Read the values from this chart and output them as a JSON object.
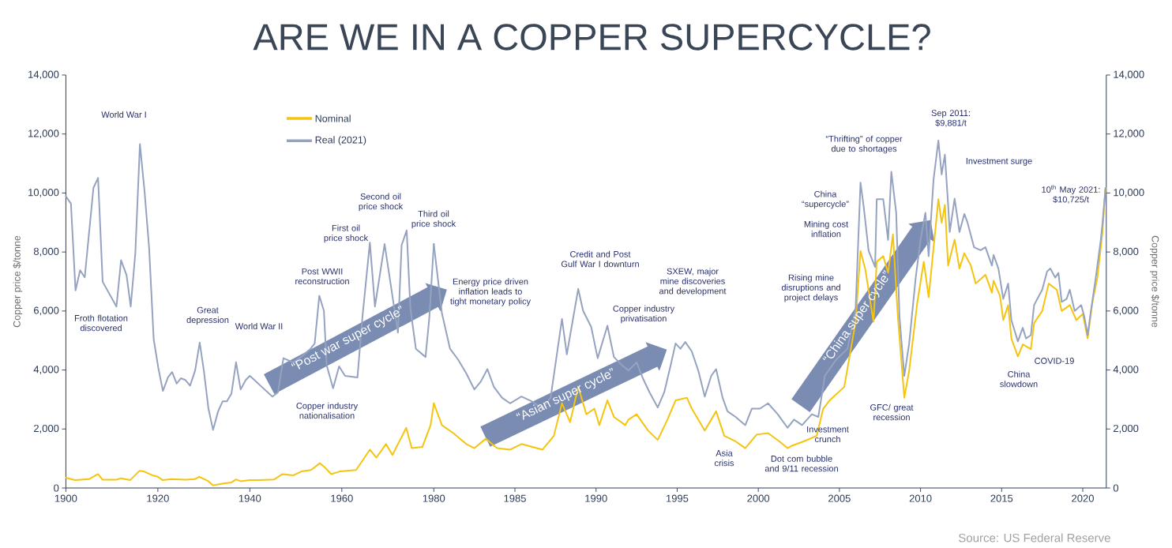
{
  "chart_data": [
    {
      "type": "line",
      "title": "ARE WE IN A COPPER SUPERCYCLE?",
      "ylabel": "Copper price $/tonne",
      "legend": "top",
      "xlim": [
        1900,
        1980
      ],
      "xticks": [
        1900,
        1920,
        1940,
        1960,
        1980
      ],
      "ylim": [
        0,
        14000
      ],
      "yticks": [
        0,
        {
          "value": 2000,
          "label": "2,000"
        },
        {
          "value": 4000,
          "label": "4,000"
        },
        {
          "value": 6000,
          "label": "6,000"
        },
        {
          "value": 8000,
          "label": "8,000"
        },
        {
          "value": 10000,
          "label": "10,000"
        },
        {
          "value": 12000,
          "label": "12,000"
        },
        {
          "value": 14000,
          "label": "14,000"
        }
      ],
      "series": [
        {
          "name": "Nominal",
          "color": "#f5c40f",
          "x": [
            1900,
            1902,
            1905,
            1907,
            1908,
            1911,
            1912,
            1914,
            1916,
            1917,
            1919,
            1920,
            1921,
            1923,
            1926,
            1928,
            1929,
            1931,
            1932,
            1934,
            1936,
            1937,
            1938,
            1940,
            1942,
            1945.3,
            1947.1,
            1949.5,
            1951.2,
            1953.3,
            1955.2,
            1956.3,
            1957.7,
            1959.5,
            1963.1,
            1966.1,
            1967.5,
            1969.6,
            1971,
            1974,
            1975.2,
            1977.5,
            1979.3,
            1980
          ],
          "values": [
            350,
            270,
            300,
            470,
            280,
            280,
            330,
            270,
            580,
            560,
            420,
            380,
            270,
            300,
            280,
            300,
            380,
            230,
            90,
            150,
            190,
            290,
            230,
            270,
            270,
            290,
            470,
            430,
            560,
            610,
            840,
            700,
            470,
            560,
            610,
            1300,
            1030,
            1490,
            1120,
            2040,
            1350,
            1390,
            2130,
            2870
          ]
        },
        {
          "name": "Real (2021)",
          "color": "#95a3c0",
          "x": [
            1900,
            1901.1,
            1902.1,
            1903.1,
            1904.1,
            1906,
            1907,
            1908,
            1911,
            1912,
            1913.2,
            1914.1,
            1915.1,
            1916.1,
            1917.1,
            1918.1,
            1919.1,
            1920.1,
            1921.1,
            1922.2,
            1923.1,
            1924.1,
            1925,
            1926,
            1927,
            1928.1,
            1929.1,
            1930,
            1931,
            1932,
            1933.1,
            1934.1,
            1935,
            1936,
            1937,
            1938,
            1939.1,
            1940,
            1941,
            1942.3,
            1944.9,
            1946.1,
            1947.3,
            1949.4,
            1951.1,
            1953.2,
            1954.1,
            1955.1,
            1956.1,
            1956.7,
            1958.1,
            1959.4,
            1960.7,
            1963.4,
            1964.5,
            1966.1,
            1967.2,
            1969.3,
            1972.2,
            1973,
            1974.1,
            1974.9,
            1976.1,
            1978.2,
            1979,
            1980
          ],
          "values": [
            9890,
            9640,
            6700,
            7380,
            7140,
            10180,
            10510,
            6990,
            6150,
            7720,
            7210,
            6150,
            7950,
            11660,
            10070,
            8140,
            5040,
            4070,
            3290,
            3750,
            3930,
            3540,
            3720,
            3660,
            3470,
            3980,
            4930,
            3980,
            2690,
            1970,
            2600,
            2940,
            2940,
            3200,
            4260,
            3340,
            3660,
            3800,
            3660,
            3470,
            3100,
            3240,
            4400,
            4260,
            4440,
            4720,
            4900,
            6520,
            6010,
            4160,
            3380,
            4120,
            3800,
            3750,
            5830,
            8320,
            6150,
            8270,
            5270,
            8230,
            8730,
            6100,
            4720,
            4440,
            5730,
            8270
          ]
        }
      ],
      "annotations": [
        "World War I",
        "Froth flotation discovered",
        "Great depression",
        "World War II",
        "Post WWII reconstruction",
        "Copper industry nationalisation",
        "First  oil price shock",
        "Second oil price shock",
        "Third oil price shock",
        "“Post war super cycle”"
      ]
    },
    {
      "type": "line",
      "y2label": "Copper price $/tonne",
      "xlim": [
        1980,
        2021.45
      ],
      "xticks": [
        1985,
        1990,
        1995,
        2000,
        2005,
        2010,
        2015,
        2020
      ],
      "y2lim": [
        0,
        14000
      ],
      "y2ticks": [
        0,
        {
          "value": 2000,
          "label": "2,000"
        },
        {
          "value": 4000,
          "label": "4,000"
        },
        {
          "value": 6000,
          "label": "6,000"
        },
        {
          "value": 8000,
          "label": "8,000"
        },
        {
          "value": 10000,
          "label": "10,000"
        },
        {
          "value": 12000,
          "label": "12,000"
        },
        {
          "value": 14000,
          "label": "14,000"
        }
      ],
      "series": [
        {
          "color": "#f5c40f",
          "axis": "y2",
          "x": [
            1980,
            1980.5,
            1981.2,
            1982,
            1982.5,
            1983.2,
            1983.9,
            1984.7,
            1985.4,
            1986.7,
            1987.4,
            1987.9,
            1988.4,
            1988.9,
            1989.4,
            1989.9,
            1990.2,
            1990.7,
            1991.1,
            1991.8,
            1992,
            1992.5,
            1993.2,
            1993.8,
            1994.4,
            1994.9,
            1995.6,
            1995.9,
            1996.7,
            1997.4,
            1997.9,
            1998.6,
            1999.2,
            1999.9,
            2000.6,
            2001.3,
            2001.8,
            2002.1,
            2002.8,
            2003.6,
            2004,
            2004.4,
            2005.3,
            2006,
            2006.3,
            2006.6,
            2007.1,
            2007.3,
            2007.7,
            2008,
            2008.3,
            2008.6,
            2009,
            2009.3,
            2009.8,
            2010.2,
            2010.5,
            2011.1,
            2011.3,
            2011.5,
            2011.7,
            2012.1,
            2012.4,
            2012.7,
            2013.1,
            2013.4,
            2014,
            2014.4,
            2014.5,
            2014.9,
            2015.1,
            2015.4,
            2015.6,
            2016,
            2016.3,
            2016.8,
            2017,
            2017.5,
            2017.9,
            2018.4,
            2018.7,
            2019.2,
            2019.6,
            2020,
            2020.3,
            2020.6,
            2020.9,
            2021.2,
            2021.4
          ],
          "values": [
            2870,
            2130,
            1860,
            1490,
            1350,
            1670,
            1350,
            1300,
            1490,
            1300,
            1770,
            2870,
            2230,
            3430,
            2500,
            2690,
            2130,
            2970,
            2410,
            2130,
            2320,
            2500,
            1950,
            1630,
            2320,
            2970,
            3060,
            2690,
            1950,
            2600,
            1770,
            1580,
            1350,
            1810,
            1860,
            1580,
            1350,
            1440,
            1580,
            1770,
            2690,
            2970,
            3430,
            5640,
            8040,
            7400,
            5640,
            7670,
            7860,
            7300,
            8600,
            5830,
            3060,
            3980,
            6290,
            7670,
            6470,
            9790,
            8990,
            9600,
            7540,
            8420,
            7440,
            7960,
            7540,
            6930,
            7230,
            6620,
            7030,
            6510,
            5690,
            6200,
            5070,
            4460,
            4870,
            4710,
            5590,
            6000,
            6930,
            6720,
            6000,
            6200,
            5690,
            5900,
            5070,
            6310,
            7130,
            8600,
            10170
          ]
        },
        {
          "color": "#95a3c0",
          "axis": "y2",
          "x": [
            1980,
            1980.5,
            1981,
            1981.5,
            1982,
            1982.5,
            1982.9,
            1983.3,
            1983.7,
            1984.2,
            1984.7,
            1985.4,
            1986.1,
            1986.7,
            1987.2,
            1987.9,
            1988.2,
            1988.9,
            1989.2,
            1989.7,
            1990.1,
            1990.7,
            1991.1,
            1991.6,
            1992,
            1992.5,
            1992.9,
            1993.3,
            1993.8,
            1994.2,
            1994.6,
            1994.9,
            1995.2,
            1995.5,
            1995.9,
            1996.3,
            1996.7,
            1997.1,
            1997.4,
            1997.8,
            1998.1,
            1998.6,
            1999.2,
            1999.6,
            2000.1,
            2000.6,
            2001.2,
            2001.8,
            2002.2,
            2002.7,
            2003.3,
            2003.7,
            2004.1,
            2004.8,
            2005.5,
            2006,
            2006.3,
            2006.5,
            2006.8,
            2007.2,
            2007.3,
            2007.7,
            2008,
            2008.2,
            2008.5,
            2008.7,
            2009,
            2009.3,
            2009.7,
            2010,
            2010.3,
            2010.5,
            2010.8,
            2011.1,
            2011.3,
            2011.5,
            2011.7,
            2011.8,
            2012.1,
            2012.4,
            2012.7,
            2012.9,
            2013.3,
            2013.7,
            2014,
            2014.4,
            2014.5,
            2014.8,
            2015.1,
            2015.4,
            2015.6,
            2016,
            2016.3,
            2016.5,
            2016.8,
            2017,
            2017.2,
            2017.5,
            2017.8,
            2018,
            2018.3,
            2018.5,
            2018.7,
            2019,
            2019.2,
            2019.5,
            2019.9,
            2020.1,
            2020.3,
            2020.5,
            2020.8,
            2021.1,
            2021.2,
            2021.4
          ],
          "values": [
            8270,
            5920,
            4720,
            4350,
            3890,
            3340,
            3610,
            4030,
            3430,
            3060,
            2870,
            3100,
            2920,
            2690,
            3060,
            5730,
            4530,
            6750,
            6010,
            5460,
            4400,
            5500,
            4440,
            4160,
            3980,
            4260,
            3700,
            3240,
            2730,
            3240,
            4160,
            4900,
            4720,
            4950,
            4630,
            3980,
            3100,
            3800,
            4030,
            3060,
            2600,
            2410,
            2130,
            2690,
            2690,
            2870,
            2500,
            2040,
            2320,
            2130,
            2500,
            2410,
            3800,
            4350,
            4720,
            6100,
            10350,
            9520,
            8040,
            7490,
            9790,
            9790,
            8410,
            10720,
            9330,
            5830,
            3800,
            4900,
            7120,
            8410,
            9330,
            7860,
            10440,
            11780,
            10630,
            11300,
            9600,
            8680,
            9810,
            8680,
            9290,
            8990,
            8160,
            8060,
            8160,
            7540,
            7900,
            7440,
            6410,
            6930,
            5690,
            4970,
            5430,
            5070,
            5180,
            6200,
            6410,
            6720,
            7340,
            7440,
            7130,
            7290,
            6310,
            6410,
            6720,
            6000,
            6200,
            5800,
            5180,
            6000,
            7130,
            8370,
            8880,
            10170
          ]
        }
      ],
      "annotations": [
        "Energy price driven inflation leads to tight monetary policy",
        "Credit and Post Gulf War I downturn",
        "“Asian super cycle”",
        "Copper industry privatisation",
        "SXEW, major mine discoveries and development",
        "Asia crisis",
        "Dot com bubble and 9/11 recession",
        "Investment crunch",
        "Rising mine disruptions and project delays",
        "Mining cost inflation",
        "China “supercycle”",
        "“Thrifting” of copper due to shortages",
        "“China super cycle”",
        "GFC/ great recession",
        "Sep 2011: $9,881/t",
        "Investment surge",
        "10$^{th}$ May 2021: $10,725/t",
        "China slowdown",
        "COVID-19",
        "Source: US Federal Reserve"
      ]
    }
  ]
}
